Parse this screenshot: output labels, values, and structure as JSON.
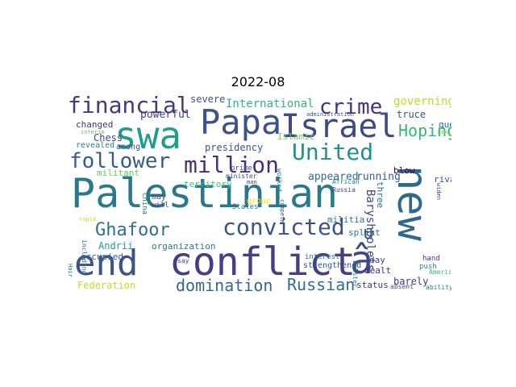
{
  "title": "2022-08",
  "words": [
    {
      "text": "Palestinian",
      "color": "#2a788e",
      "vertical": false
    },
    {
      "text": "new",
      "color": "#31688e",
      "vertical": true
    },
    {
      "text": "end",
      "color": "#3b528b",
      "vertical": false
    },
    {
      "text": "conflict",
      "color": "#433e85",
      "vertical": false
    },
    {
      "text": "â",
      "color": "#3e4989",
      "vertical": false
    },
    {
      "text": "swa",
      "color": "#1f9e89",
      "vertical": false
    },
    {
      "text": "Papa",
      "color": "#3b528b",
      "vertical": false
    },
    {
      "text": "Israel",
      "color": "#3e4989",
      "vertical": false
    },
    {
      "text": "financial",
      "color": "#443a83",
      "vertical": false
    },
    {
      "text": "crime",
      "color": "#46327e",
      "vertical": false
    },
    {
      "text": "United",
      "color": "#21918c",
      "vertical": false
    },
    {
      "text": "million",
      "color": "#46307e",
      "vertical": false
    },
    {
      "text": "follower",
      "color": "#365c8d",
      "vertical": false
    },
    {
      "text": "Ghafoor",
      "color": "#2c728e",
      "vertical": false
    },
    {
      "text": "convicted",
      "color": "#3b528b",
      "vertical": false
    },
    {
      "text": "Hoping",
      "color": "#35b779",
      "vertical": false
    },
    {
      "text": "domination",
      "color": "#31688e",
      "vertical": false
    },
    {
      "text": "Russian",
      "color": "#2e6e8e",
      "vertical": false
    },
    {
      "text": "u",
      "color": "#33638d",
      "vertical": false
    },
    {
      "text": "International",
      "color": "#2fb47c",
      "vertical": false
    },
    {
      "text": "governing",
      "color": "#b5de2b",
      "vertical": false
    },
    {
      "text": "powerful",
      "color": "#433e85",
      "vertical": false
    },
    {
      "text": "severe",
      "color": "#3b528b",
      "vertical": false
    },
    {
      "text": "changed",
      "color": "#46327e",
      "vertical": false
    },
    {
      "text": "revealed",
      "color": "#287d8e",
      "vertical": false
    },
    {
      "text": "among",
      "color": "#3e4989",
      "vertical": false
    },
    {
      "text": "Chess",
      "color": "#414487",
      "vertical": false
    },
    {
      "text": "presidency",
      "color": "#3b528b",
      "vertical": false
    },
    {
      "text": "Islamic",
      "color": "#7ad151",
      "vertical": false
    },
    {
      "text": "truce",
      "color": "#3b528b",
      "vertical": false
    },
    {
      "text": "que",
      "color": "#2a788e",
      "vertical": false
    },
    {
      "text": "appeared",
      "color": "#2c728e",
      "vertical": false
    },
    {
      "text": "running",
      "color": "#365c8d",
      "vertical": false
    },
    {
      "text": "blow",
      "color": "#440154",
      "vertical": false
    },
    {
      "text": "rival",
      "color": "#3b528b",
      "vertical": false
    },
    {
      "text": "militant",
      "color": "#5ec962",
      "vertical": false
    },
    {
      "text": "territory",
      "color": "#3fbc73",
      "vertical": false
    },
    {
      "text": "Baryshpolets",
      "color": "#414487",
      "vertical": true
    },
    {
      "text": "three",
      "color": "#2c728e",
      "vertical": true
    },
    {
      "text": "militia",
      "color": "#2a788e",
      "vertical": false
    },
    {
      "text": "splint",
      "color": "#2c728e",
      "vertical": false
    },
    {
      "text": "Andrii",
      "color": "#1f9e89",
      "vertical": false
    },
    {
      "text": "organization",
      "color": "#2a788e",
      "vertical": false
    },
    {
      "text": "strengthened",
      "color": "#3b528b",
      "vertical": false
    },
    {
      "text": "occupied",
      "color": "#365c8d",
      "vertical": false
    },
    {
      "text": "changed",
      "color": "#46327e",
      "vertical": false
    },
    {
      "text": "day",
      "color": "#3e4989",
      "vertical": false
    },
    {
      "text": "dealt",
      "color": "#46307e",
      "vertical": false
    },
    {
      "text": "barely",
      "color": "#443a83",
      "vertical": false
    },
    {
      "text": "Federation",
      "color": "#bddf26",
      "vertical": false
    },
    {
      "text": "status",
      "color": "#46327e",
      "vertical": false
    },
    {
      "text": "group",
      "color": "#fde725",
      "vertical": false
    },
    {
      "text": "may",
      "color": "#3e4989",
      "vertical": false
    },
    {
      "text": "will",
      "color": "#3e4989",
      "vertical": false
    },
    {
      "text": "China",
      "color": "#2a788e",
      "vertical": true
    },
    {
      "text": "interest",
      "color": "#2c728e",
      "vertical": false
    },
    {
      "text": "push",
      "color": "#21918c",
      "vertical": false
    },
    {
      "text": "hand",
      "color": "#443a83",
      "vertical": false
    },
    {
      "text": "States",
      "color": "#2a788e",
      "vertical": false
    },
    {
      "text": "prime",
      "color": "#3b528b",
      "vertical": false
    },
    {
      "text": "minister",
      "color": "#3e4989",
      "vertical": false
    },
    {
      "text": "administration",
      "color": "#3b528b",
      "vertical": false
    },
    {
      "text": "worked",
      "color": "#2c728e",
      "vertical": true
    },
    {
      "text": "African",
      "color": "#2a788e",
      "vertical": false
    },
    {
      "text": "Russia",
      "color": "#433e85",
      "vertical": false
    },
    {
      "text": "bolster",
      "color": "#2c728e",
      "vertical": true
    },
    {
      "text": "American",
      "color": "#35b779",
      "vertical": false
    },
    {
      "text": "absent",
      "color": "#3e4989",
      "vertical": false
    },
    {
      "text": "ability",
      "color": "#2a788e",
      "vertical": false
    },
    {
      "text": "including",
      "color": "#2c728e",
      "vertical": true
    },
    {
      "text": "say",
      "color": "#3e4989",
      "vertical": false
    },
    {
      "text": "interim",
      "color": "#5ec962",
      "vertical": false
    },
    {
      "text": "Canal",
      "color": "#7ad151",
      "vertical": false
    },
    {
      "text": "widen",
      "color": "#3e4989",
      "vertical": true
    },
    {
      "text": "rapid",
      "color": "#bddf26",
      "vertical": false
    },
    {
      "text": "Hair",
      "color": "#2a788e",
      "vertical": true
    },
    {
      "text": "man",
      "color": "#433e85",
      "vertical": false
    },
    {
      "text": "compete",
      "color": "#3b528b",
      "vertical": true
    }
  ]
}
